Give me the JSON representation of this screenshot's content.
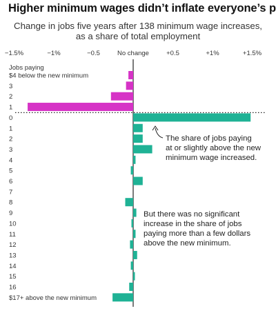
{
  "title": "Higher minimum wages didn’t inflate everyone’s pay",
  "subtitle_lines": [
    "Change in jobs five years after 138 minimum wage increases,",
    "as a share of total employment"
  ],
  "colors": {
    "below": "#d633c6",
    "above": "#1fb295",
    "axis": "#222222"
  },
  "chart_data": {
    "type": "bar",
    "orientation": "horizontal",
    "title": "Higher minimum wages didn’t inflate everyone’s pay",
    "subtitle": "Change in jobs five years after 138 minimum wage increases, as a share of total employment",
    "xlim": [
      -1.7,
      1.7
    ],
    "x_ticks": [
      {
        "value": -1.5,
        "label": "−1.5%"
      },
      {
        "value": -1.0,
        "label": "−1%"
      },
      {
        "value": -0.5,
        "label": "−0.5"
      },
      {
        "value": 0,
        "label": "No change"
      },
      {
        "value": 0.5,
        "label": "+0.5"
      },
      {
        "value": 1.0,
        "label": "+1%"
      },
      {
        "value": 1.5,
        "label": "+1.5%"
      }
    ],
    "category_header": [
      "Jobs paying",
      "$4 below the new minimum"
    ],
    "categories": [
      "$4 below the new minimum",
      "3",
      "2",
      "1",
      "0",
      "1",
      "2",
      "3",
      "4",
      "5",
      "6",
      "7",
      "8",
      "9",
      "10",
      "11",
      "12",
      "13",
      "14",
      "15",
      "16",
      "$17+ above the new minimum"
    ],
    "groups": [
      "below",
      "below",
      "below",
      "below",
      "above",
      "above",
      "above",
      "above",
      "above",
      "above",
      "above",
      "above",
      "above",
      "above",
      "above",
      "above",
      "above",
      "above",
      "above",
      "above",
      "above",
      "above"
    ],
    "values": [
      -0.06,
      -0.09,
      -0.28,
      -1.33,
      1.48,
      0.12,
      0.12,
      0.24,
      0.03,
      -0.03,
      0.12,
      0.0,
      -0.1,
      0.04,
      -0.01,
      0.03,
      -0.04,
      0.05,
      -0.03,
      0.01,
      -0.05,
      -0.26
    ],
    "annotations": [
      [
        "The share of jobs paying",
        "at or slightly above the new",
        "minimum wage increased."
      ],
      [
        "But there was no significant",
        "increase in the share of jobs",
        "paying more than a few dollars",
        "above the new minimum."
      ]
    ]
  }
}
